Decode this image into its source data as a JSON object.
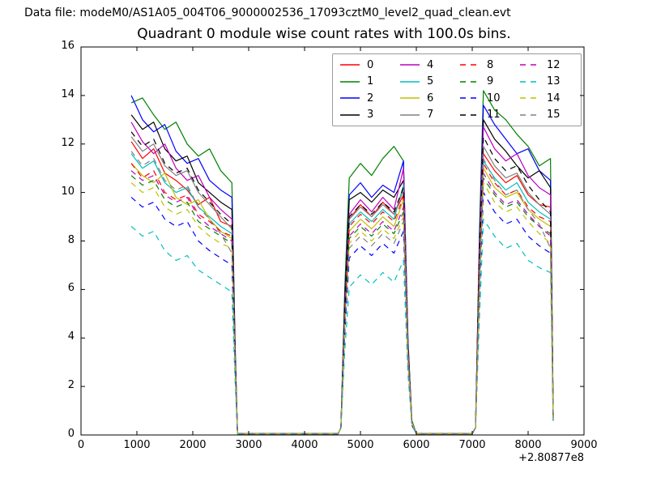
{
  "header": {
    "text": "Data file: modeM0/AS1A05_004T06_9000002536_17093cztM0_level2_quad_clean.evt"
  },
  "chart_data": {
    "type": "line",
    "title": "Quadrant 0 module wise count rates with 100.0s bins.",
    "xlabel": "",
    "ylabel": "",
    "xlim": [
      0,
      9000
    ],
    "ylim": [
      0,
      16
    ],
    "xticks": [
      0,
      1000,
      2000,
      3000,
      4000,
      5000,
      6000,
      7000,
      8000,
      9000
    ],
    "yticks": [
      0,
      2,
      4,
      6,
      8,
      10,
      12,
      14,
      16
    ],
    "x_offset_text": "+2.80877e8",
    "grid": false,
    "legend": {
      "ncol": 4,
      "location": "upper center",
      "order": "column-major",
      "entries": [
        "0",
        "1",
        "2",
        "3",
        "4",
        "5",
        "6",
        "7",
        "8",
        "9",
        "10",
        "11",
        "12",
        "13",
        "14",
        "15"
      ]
    },
    "x": [
      900,
      1100,
      1300,
      1500,
      1700,
      1900,
      2100,
      2300,
      2500,
      2700,
      2760,
      2800,
      4600,
      4650,
      4720,
      4800,
      5000,
      5200,
      5400,
      5600,
      5770,
      5850,
      5920,
      6000,
      7000,
      7060,
      7130,
      7200,
      7400,
      7600,
      7800,
      8000,
      8200,
      8400,
      8450
    ],
    "series": [
      {
        "name": "0",
        "color": "#ff0000",
        "linestyle": "solid",
        "y": [
          12.1,
          11.4,
          11.8,
          10.8,
          10.5,
          10.1,
          9.5,
          9.8,
          8.8,
          8.6,
          3.0,
          0.05,
          0.05,
          0.3,
          5.1,
          8.9,
          9.5,
          9.0,
          9.6,
          9.1,
          9.9,
          3.5,
          0.5,
          0.05,
          0.05,
          0.3,
          7.0,
          11.6,
          10.9,
          10.4,
          10.7,
          9.9,
          9.5,
          9.4,
          0.7
        ]
      },
      {
        "name": "1",
        "color": "#008000",
        "linestyle": "solid",
        "y": [
          13.7,
          13.9,
          13.2,
          12.6,
          12.9,
          12.0,
          11.5,
          11.8,
          10.9,
          10.4,
          3.6,
          0.05,
          0.05,
          0.3,
          6.1,
          10.6,
          11.2,
          10.7,
          11.4,
          11.9,
          11.3,
          3.9,
          0.6,
          0.05,
          0.05,
          0.3,
          8.5,
          14.2,
          13.4,
          13.0,
          12.4,
          11.9,
          11.1,
          11.4,
          0.8
        ]
      },
      {
        "name": "2",
        "color": "#0000ff",
        "linestyle": "solid",
        "y": [
          14.0,
          13.0,
          12.5,
          12.8,
          11.7,
          11.2,
          11.4,
          10.5,
          10.1,
          9.8,
          3.4,
          0.05,
          0.05,
          0.3,
          5.6,
          9.9,
          10.4,
          9.8,
          10.3,
          10.0,
          11.3,
          3.9,
          0.5,
          0.05,
          0.05,
          0.3,
          8.1,
          13.6,
          12.8,
          12.2,
          11.6,
          11.8,
          10.9,
          10.5,
          0.7
        ]
      },
      {
        "name": "3",
        "color": "#000000",
        "linestyle": "solid",
        "y": [
          13.2,
          12.6,
          12.9,
          11.8,
          11.3,
          11.5,
          10.4,
          10.0,
          9.6,
          9.3,
          3.2,
          0.05,
          0.05,
          0.3,
          5.4,
          9.7,
          10.0,
          9.6,
          10.1,
          9.8,
          10.5,
          3.7,
          0.5,
          0.05,
          0.05,
          0.3,
          7.8,
          13.0,
          12.2,
          11.7,
          11.1,
          10.6,
          10.9,
          10.2,
          0.7
        ]
      },
      {
        "name": "4",
        "color": "#bf00bf",
        "linestyle": "solid",
        "y": [
          12.9,
          12.1,
          11.6,
          12.0,
          11.0,
          10.5,
          10.7,
          9.8,
          9.3,
          8.9,
          3.1,
          0.05,
          0.05,
          0.3,
          5.2,
          9.1,
          9.7,
          9.2,
          9.8,
          9.3,
          11.0,
          3.6,
          0.5,
          0.05,
          0.05,
          0.3,
          7.6,
          12.7,
          11.8,
          11.3,
          11.6,
          10.7,
          10.2,
          9.9,
          0.7
        ]
      },
      {
        "name": "5",
        "color": "#00bfbf",
        "linestyle": "solid",
        "y": [
          11.6,
          11.0,
          11.3,
          10.4,
          10.0,
          10.2,
          9.4,
          9.0,
          8.6,
          8.3,
          2.9,
          0.05,
          0.05,
          0.3,
          4.9,
          8.7,
          9.2,
          8.8,
          9.3,
          8.9,
          10.3,
          3.4,
          0.5,
          0.05,
          0.05,
          0.3,
          6.8,
          11.3,
          10.6,
          10.1,
          10.4,
          9.6,
          9.2,
          8.9,
          0.7
        ]
      },
      {
        "name": "6",
        "color": "#bfbf00",
        "linestyle": "solid",
        "y": [
          11.2,
          10.7,
          10.4,
          10.8,
          9.8,
          9.5,
          9.7,
          8.9,
          8.4,
          8.1,
          2.8,
          0.05,
          0.05,
          0.3,
          4.8,
          8.4,
          8.9,
          8.5,
          9.0,
          8.6,
          9.7,
          3.3,
          0.5,
          0.05,
          0.05,
          0.3,
          6.6,
          11.0,
          10.2,
          9.8,
          10.0,
          9.3,
          8.9,
          8.6,
          0.7
        ]
      },
      {
        "name": "7",
        "color": "#808080",
        "linestyle": "solid",
        "y": [
          12.3,
          11.7,
          12.0,
          11.1,
          10.7,
          10.9,
          10.0,
          9.5,
          9.0,
          8.5,
          3.0,
          0.05,
          0.05,
          0.3,
          5.0,
          8.9,
          9.4,
          9.0,
          9.5,
          9.1,
          10.1,
          3.5,
          0.5,
          0.05,
          0.05,
          0.3,
          7.2,
          11.9,
          11.1,
          10.6,
          10.8,
          10.0,
          9.5,
          9.1,
          0.7
        ]
      },
      {
        "name": "8",
        "color": "#ff0000",
        "linestyle": "dashed",
        "y": [
          11.2,
          10.6,
          10.9,
          10.0,
          9.7,
          9.9,
          9.1,
          8.8,
          8.4,
          8.2,
          2.9,
          0.05,
          0.05,
          0.3,
          4.9,
          8.6,
          9.1,
          8.7,
          9.2,
          8.8,
          9.8,
          3.4,
          0.5,
          0.05,
          0.05,
          0.3,
          6.9,
          11.2,
          10.4,
          9.9,
          10.1,
          9.4,
          9.0,
          8.8,
          0.7
        ]
      },
      {
        "name": "9",
        "color": "#008000",
        "linestyle": "dashed",
        "y": [
          10.7,
          10.3,
          10.5,
          9.7,
          9.4,
          9.6,
          8.8,
          8.5,
          8.2,
          7.9,
          2.8,
          0.05,
          0.05,
          0.3,
          4.6,
          8.1,
          8.6,
          8.2,
          8.7,
          8.3,
          9.2,
          3.2,
          0.5,
          0.05,
          0.05,
          0.3,
          6.4,
          10.6,
          9.9,
          9.4,
          9.6,
          9.0,
          8.6,
          8.3,
          0.7
        ]
      },
      {
        "name": "10",
        "color": "#0000ff",
        "linestyle": "dashed",
        "y": [
          9.8,
          9.4,
          9.6,
          8.9,
          8.6,
          8.8,
          8.0,
          7.6,
          7.3,
          7.0,
          2.5,
          0.05,
          0.05,
          0.3,
          4.2,
          7.3,
          7.8,
          7.4,
          7.9,
          7.5,
          8.4,
          2.9,
          0.4,
          0.05,
          0.05,
          0.3,
          5.8,
          10.0,
          9.2,
          8.7,
          8.9,
          8.2,
          7.8,
          7.5,
          0.6
        ]
      },
      {
        "name": "11",
        "color": "#000000",
        "linestyle": "dashed",
        "y": [
          12.5,
          11.9,
          12.2,
          11.2,
          10.8,
          11.0,
          10.1,
          9.6,
          9.1,
          8.7,
          3.0,
          0.05,
          0.05,
          0.3,
          5.1,
          9.0,
          9.5,
          9.1,
          9.6,
          9.2,
          10.2,
          3.5,
          0.5,
          0.05,
          0.05,
          0.3,
          7.4,
          12.3,
          11.4,
          10.9,
          11.1,
          10.3,
          9.7,
          9.2,
          0.7
        ]
      },
      {
        "name": "12",
        "color": "#bf00bf",
        "linestyle": "dashed",
        "y": [
          10.9,
          10.5,
          10.7,
          9.9,
          9.6,
          9.8,
          9.0,
          8.6,
          8.3,
          8.0,
          2.8,
          0.05,
          0.05,
          0.3,
          4.7,
          8.2,
          8.7,
          8.3,
          8.8,
          8.4,
          9.4,
          3.3,
          0.5,
          0.05,
          0.05,
          0.3,
          6.5,
          10.8,
          10.0,
          9.5,
          9.7,
          9.1,
          8.6,
          8.2,
          0.7
        ]
      },
      {
        "name": "13",
        "color": "#00bfbf",
        "linestyle": "dashed",
        "y": [
          8.6,
          8.2,
          8.4,
          7.6,
          7.2,
          7.4,
          6.8,
          6.5,
          6.2,
          5.9,
          2.1,
          0.05,
          0.05,
          0.3,
          3.5,
          6.1,
          6.6,
          6.2,
          6.7,
          6.3,
          7.2,
          2.5,
          0.4,
          0.05,
          0.05,
          0.3,
          4.9,
          8.9,
          8.2,
          7.7,
          7.9,
          7.2,
          6.9,
          6.7,
          0.5
        ]
      },
      {
        "name": "14",
        "color": "#bfbf00",
        "linestyle": "dashed",
        "y": [
          10.4,
          10.0,
          10.2,
          9.4,
          9.1,
          9.3,
          8.6,
          8.2,
          7.9,
          7.7,
          2.7,
          0.05,
          0.05,
          0.3,
          4.5,
          7.9,
          8.4,
          8.0,
          8.5,
          8.1,
          9.0,
          3.1,
          0.5,
          0.05,
          0.05,
          0.3,
          6.2,
          10.4,
          9.6,
          9.2,
          9.4,
          8.8,
          8.3,
          7.9,
          0.7
        ]
      },
      {
        "name": "15",
        "color": "#808080",
        "linestyle": "dashed",
        "y": [
          11.7,
          11.1,
          11.4,
          10.5,
          10.1,
          10.3,
          9.4,
          8.9,
          8.3,
          7.5,
          2.6,
          0.05,
          0.05,
          0.3,
          4.4,
          7.7,
          8.2,
          7.8,
          8.3,
          7.9,
          8.8,
          3.0,
          0.5,
          0.05,
          0.05,
          0.3,
          6.0,
          11.4,
          10.5,
          9.9,
          10.1,
          9.3,
          8.7,
          7.7,
          0.6
        ]
      }
    ]
  }
}
